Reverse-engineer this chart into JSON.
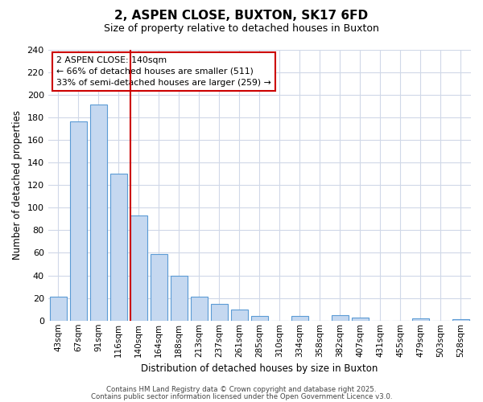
{
  "title": "2, ASPEN CLOSE, BUXTON, SK17 6FD",
  "subtitle": "Size of property relative to detached houses in Buxton",
  "xlabel": "Distribution of detached houses by size in Buxton",
  "ylabel": "Number of detached properties",
  "categories": [
    "43sqm",
    "67sqm",
    "91sqm",
    "116sqm",
    "140sqm",
    "164sqm",
    "188sqm",
    "213sqm",
    "237sqm",
    "261sqm",
    "285sqm",
    "310sqm",
    "334sqm",
    "358sqm",
    "382sqm",
    "407sqm",
    "431sqm",
    "455sqm",
    "479sqm",
    "503sqm",
    "528sqm"
  ],
  "values": [
    21,
    176,
    191,
    130,
    93,
    59,
    40,
    21,
    15,
    10,
    4,
    0,
    4,
    0,
    5,
    3,
    0,
    0,
    2,
    0,
    1
  ],
  "bar_color": "#c5d8f0",
  "bar_edge_color": "#5b9bd5",
  "vline_index": 4,
  "vline_color": "#cc0000",
  "annotation_title": "2 ASPEN CLOSE: 140sqm",
  "annotation_line1": "← 66% of detached houses are smaller (511)",
  "annotation_line2": "33% of semi-detached houses are larger (259) →",
  "annotation_box_color": "#cc0000",
  "ylim": [
    0,
    240
  ],
  "yticks": [
    0,
    20,
    40,
    60,
    80,
    100,
    120,
    140,
    160,
    180,
    200,
    220,
    240
  ],
  "footer1": "Contains HM Land Registry data © Crown copyright and database right 2025.",
  "footer2": "Contains public sector information licensed under the Open Government Licence v3.0.",
  "bg_color": "#ffffff",
  "grid_color": "#d0d8e8"
}
